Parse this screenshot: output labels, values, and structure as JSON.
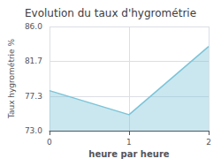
{
  "chart_data": {
    "type": "line",
    "title": "Evolution du taux d'hygrométrie",
    "xlabel": "heure par heure",
    "ylabel": "Taux hygrométrie %",
    "x": [
      0,
      1,
      2
    ],
    "values": [
      78.0,
      75.0,
      83.5
    ],
    "color": "#7bc4d8",
    "xlim": [
      0,
      2
    ],
    "ylim": [
      73.0,
      86.0
    ],
    "xticks": [
      0,
      1,
      2
    ],
    "yticks": [
      {
        "value": 73.0,
        "label": "73.0"
      },
      77.3,
      81.7,
      {
        "value": 86.0,
        "label": "86.0"
      }
    ],
    "grid": true
  }
}
